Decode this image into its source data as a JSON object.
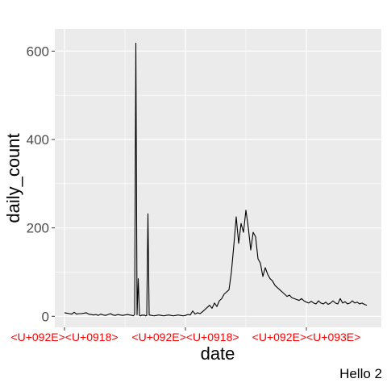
{
  "chart_data": {
    "type": "line",
    "xlabel": "date",
    "ylabel": "daily_count",
    "caption": "Hello 2",
    "ylim": [
      -25,
      650
    ],
    "y_ticks": [
      0,
      200,
      400,
      600
    ],
    "x_ticks": [
      {
        "label": "<U+092E><U+0918>",
        "x": 0
      },
      {
        "label": "<U+092E><U+0918>",
        "x": 100
      },
      {
        "label": "<U+092E><U+093E>",
        "x": 200
      }
    ],
    "xlim": [
      -8,
      262
    ],
    "tick_label_color": "#ff0000",
    "panel_color": "#ebebeb",
    "grid_color": "#ffffff",
    "line_color": "#000000",
    "grid": true,
    "series": [
      {
        "x": [
          0,
          2,
          4,
          6,
          8,
          10,
          12,
          14,
          16,
          18,
          20,
          22,
          24,
          26,
          28,
          30,
          32,
          34,
          36,
          38,
          40,
          42,
          44,
          46,
          48,
          50,
          52,
          54,
          56,
          57,
          58,
          59,
          60,
          61,
          62,
          63,
          64,
          65,
          66,
          67,
          68,
          69,
          70,
          72,
          74,
          76,
          78,
          80,
          82,
          84,
          86,
          88,
          90,
          92,
          94,
          96,
          98,
          100,
          102,
          104,
          106,
          108,
          110,
          112,
          114,
          116,
          118,
          120,
          122,
          124,
          126,
          128,
          130,
          132,
          134,
          136,
          138,
          140,
          142,
          144,
          146,
          148,
          150,
          152,
          154,
          156,
          158,
          160,
          162,
          164,
          166,
          168,
          170,
          172,
          174,
          176,
          178,
          180,
          182,
          184,
          186,
          188,
          190,
          192,
          194,
          196,
          198,
          200,
          202,
          204,
          206,
          208,
          210,
          212,
          214,
          216,
          218,
          220,
          222,
          224,
          226,
          228,
          230,
          232,
          234,
          236,
          238,
          240,
          242,
          244,
          246,
          248,
          250
        ],
        "y": [
          8,
          7,
          6,
          5,
          9,
          5,
          6,
          6,
          7,
          8,
          5,
          4,
          3,
          4,
          2,
          5,
          3,
          2,
          4,
          6,
          3,
          2,
          4,
          3,
          2,
          3,
          4,
          3,
          2,
          1,
          5,
          618,
          3,
          85,
          2,
          1,
          3,
          2,
          3,
          1,
          2,
          232,
          3,
          2,
          1,
          2,
          3,
          2,
          1,
          2,
          3,
          2,
          1,
          2,
          3,
          2,
          1,
          2,
          4,
          3,
          12,
          5,
          8,
          6,
          10,
          15,
          20,
          25,
          18,
          30,
          22,
          35,
          40,
          50,
          55,
          60,
          100,
          160,
          225,
          165,
          210,
          190,
          240,
          200,
          150,
          190,
          180,
          130,
          120,
          90,
          110,
          95,
          85,
          80,
          70,
          65,
          60,
          55,
          50,
          45,
          48,
          42,
          40,
          38,
          36,
          40,
          35,
          32,
          30,
          34,
          30,
          28,
          35,
          30,
          28,
          32,
          27,
          30,
          35,
          30,
          28,
          40,
          30,
          33,
          28,
          30,
          35,
          30,
          32,
          28,
          30,
          27,
          25
        ]
      }
    ]
  }
}
